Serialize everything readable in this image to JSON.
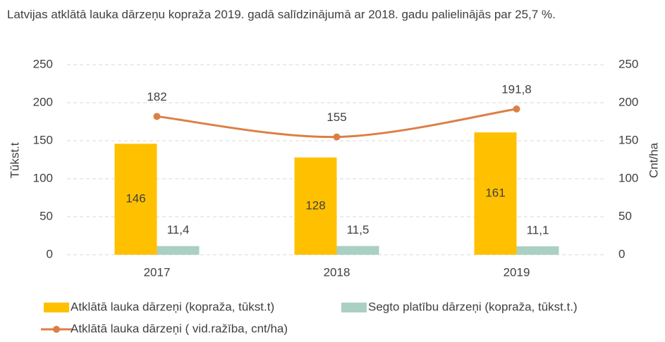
{
  "chart_data": {
    "type": "bar",
    "title": "Latvijas atklātā lauka dārzeņu kopraža 2019. gadā salīdzinājumā ar 2018. gadu palielinājās par 25,7 %.",
    "ylabel": "Tūkst.t",
    "y2label": "Cnt/ha",
    "categories": [
      "2017",
      "2018",
      "2019"
    ],
    "series": [
      {
        "name": "Atklātā lauka dārzeņi (kopraža, tūkst.t)",
        "type": "bar",
        "color": "#ffc000",
        "values": [
          146,
          128,
          161
        ]
      },
      {
        "name": "Segto platību dārzeņi (kopraža, tūkst.t.)",
        "type": "bar",
        "color": "#a9d0c3",
        "values": [
          11.4,
          11.5,
          11.1
        ],
        "value_labels": [
          "11,4",
          "11,5",
          "11,1"
        ]
      },
      {
        "name": "Atklātā lauka dārzeņi ( vid.ražība, cnt/ha)",
        "type": "line",
        "axis": "y2",
        "color": "#dc7f45",
        "values": [
          182,
          155,
          191.8
        ],
        "value_labels": [
          "182",
          "155",
          "191,8"
        ]
      }
    ],
    "ylim": [
      0,
      250
    ],
    "yticks": [
      0,
      50,
      100,
      150,
      200,
      250
    ],
    "y2lim": [
      0,
      250
    ],
    "y2ticks": [
      0,
      50,
      100,
      150,
      200,
      250
    ],
    "grid": true,
    "legend": "bottom"
  }
}
